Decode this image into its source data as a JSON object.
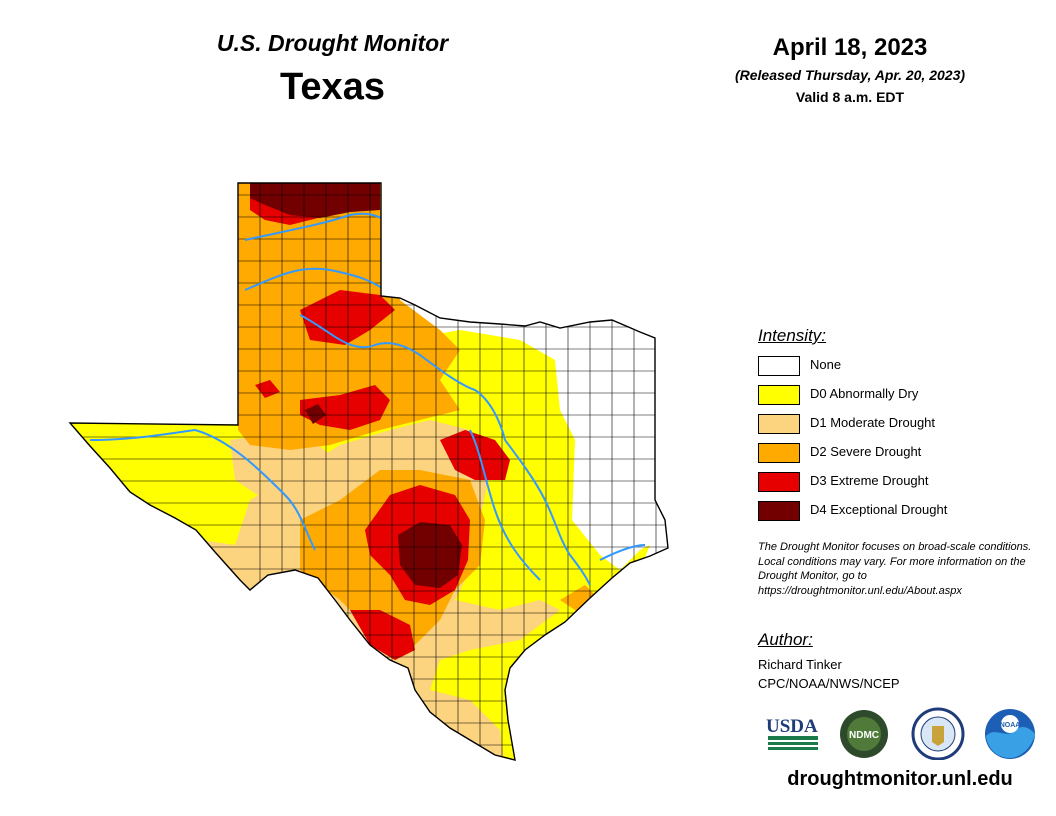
{
  "header": {
    "subtitle": "U.S. Drought Monitor",
    "title": "Texas",
    "date": "April 18, 2023",
    "released": "(Released Thursday, Apr. 20, 2023)",
    "valid": "Valid 8 a.m. EDT"
  },
  "legend": {
    "title": "Intensity:",
    "items": [
      {
        "label": "None",
        "color": "#ffffff"
      },
      {
        "label": "D0 Abnormally Dry",
        "color": "#ffff00"
      },
      {
        "label": "D1 Moderate Drought",
        "color": "#fcd37f"
      },
      {
        "label": "D2 Severe Drought",
        "color": "#ffaa00"
      },
      {
        "label": "D3 Extreme Drought",
        "color": "#e60000"
      },
      {
        "label": "D4 Exceptional Drought",
        "color": "#730000"
      }
    ]
  },
  "note": "The Drought Monitor focuses on broad-scale conditions. Local conditions may vary. For more information on the Drought Monitor, go to https://droughtmonitor.unl.edu/About.aspx",
  "author": {
    "title": "Author:",
    "name": "Richard Tinker",
    "org": "CPC/NOAA/NWS/NCEP"
  },
  "logos": {
    "usda": "USDA",
    "ndmc": "NDMC",
    "noaa": "NOAA"
  },
  "website": "droughtmonitor.unl.edu",
  "colors": {
    "river": "#3399ff",
    "county_line": "#000000"
  }
}
